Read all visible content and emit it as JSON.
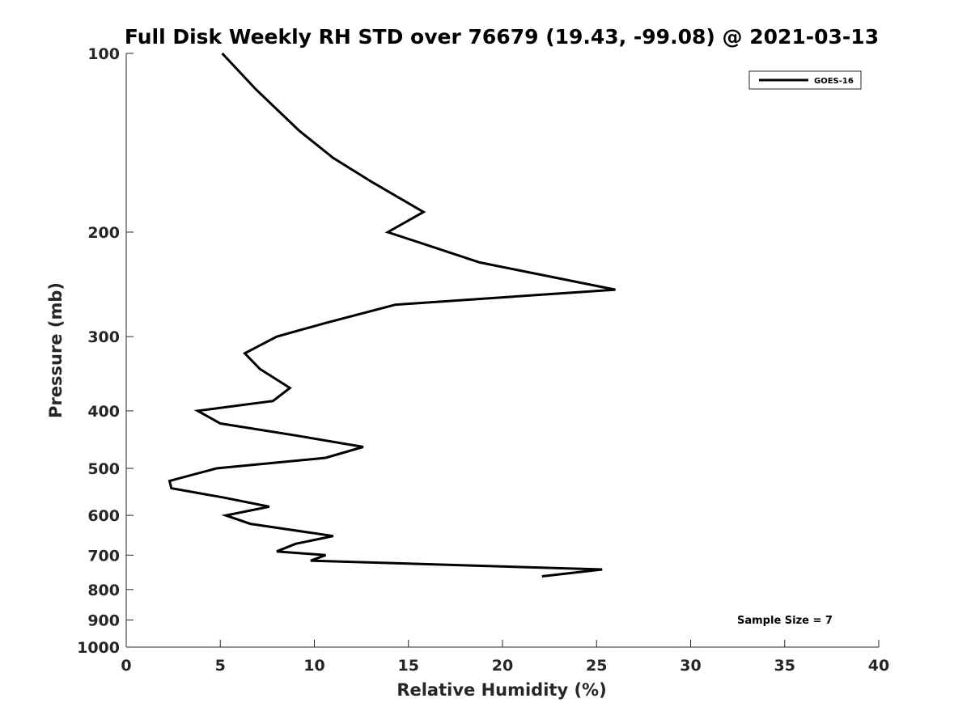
{
  "chart_data": {
    "type": "line",
    "title": "Full Disk Weekly RH STD over 76679 (19.43, -99.08) @ 2021-03-13",
    "xlabel": "Relative Humidity (%)",
    "ylabel": "Pressure (mb)",
    "xlim": [
      0,
      40
    ],
    "ylim": [
      100,
      1000
    ],
    "yscale": "log",
    "yreversed": true,
    "grid": false,
    "legend_position": "top-right",
    "x_ticks": [
      0,
      5,
      10,
      15,
      20,
      25,
      30,
      35,
      40
    ],
    "y_ticks": [
      100,
      200,
      300,
      400,
      500,
      600,
      700,
      800,
      900,
      1000
    ],
    "series": [
      {
        "name": "GOES-16",
        "color": "#000000",
        "points": [
          {
            "p": 100,
            "rh": 5.1
          },
          {
            "p": 115,
            "rh": 6.9
          },
          {
            "p": 135,
            "rh": 9.2
          },
          {
            "p": 150,
            "rh": 11.0
          },
          {
            "p": 165,
            "rh": 13.1
          },
          {
            "p": 185,
            "rh": 15.8
          },
          {
            "p": 200,
            "rh": 13.9
          },
          {
            "p": 225,
            "rh": 18.8
          },
          {
            "p": 250,
            "rh": 26.0
          },
          {
            "p": 265,
            "rh": 14.3
          },
          {
            "p": 285,
            "rh": 10.5
          },
          {
            "p": 300,
            "rh": 8.0
          },
          {
            "p": 320,
            "rh": 6.3
          },
          {
            "p": 340,
            "rh": 7.1
          },
          {
            "p": 366,
            "rh": 8.7
          },
          {
            "p": 385,
            "rh": 7.8
          },
          {
            "p": 400,
            "rh": 3.8
          },
          {
            "p": 420,
            "rh": 5.0
          },
          {
            "p": 440,
            "rh": 9.0
          },
          {
            "p": 460,
            "rh": 12.6
          },
          {
            "p": 480,
            "rh": 10.6
          },
          {
            "p": 500,
            "rh": 4.8
          },
          {
            "p": 525,
            "rh": 2.3
          },
          {
            "p": 540,
            "rh": 2.4
          },
          {
            "p": 560,
            "rh": 5.2
          },
          {
            "p": 580,
            "rh": 7.6
          },
          {
            "p": 600,
            "rh": 5.3
          },
          {
            "p": 620,
            "rh": 6.6
          },
          {
            "p": 650,
            "rh": 11.0
          },
          {
            "p": 670,
            "rh": 9.0
          },
          {
            "p": 690,
            "rh": 8.0
          },
          {
            "p": 700,
            "rh": 10.6
          },
          {
            "p": 715,
            "rh": 9.8
          },
          {
            "p": 740,
            "rh": 25.3
          },
          {
            "p": 760,
            "rh": 22.1
          }
        ]
      }
    ],
    "annotations": [
      "Sample Size = 7"
    ]
  }
}
